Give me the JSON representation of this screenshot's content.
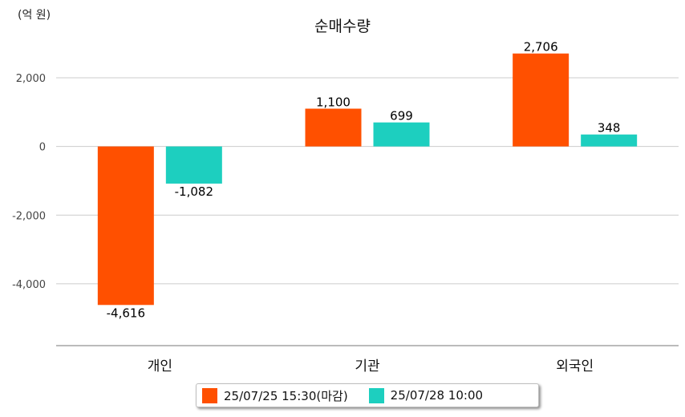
{
  "chart_data": {
    "type": "bar",
    "title": "순매수량",
    "unit_label": "(억 원)",
    "categories": [
      "개인",
      "기관",
      "외국인"
    ],
    "series": [
      {
        "name": "25/07/25 15:30(마감)",
        "color": "#FF5000",
        "values": [
          -4616,
          1100,
          2706
        ]
      },
      {
        "name": "25/07/28 10:00",
        "color": "#1DCFBF",
        "values": [
          -1082,
          699,
          348
        ]
      }
    ],
    "value_labels": [
      [
        "-4,616",
        "1,100",
        "2,706"
      ],
      [
        "-1,082",
        "699",
        "348"
      ]
    ],
    "y_ticks": [
      2000,
      0,
      -2000,
      -4000
    ],
    "y_tick_labels": [
      "2,000",
      "0",
      "-2,000",
      "-4,000"
    ],
    "ylim": [
      -5800,
      3400
    ],
    "grid": true,
    "legend_position": "bottom"
  }
}
